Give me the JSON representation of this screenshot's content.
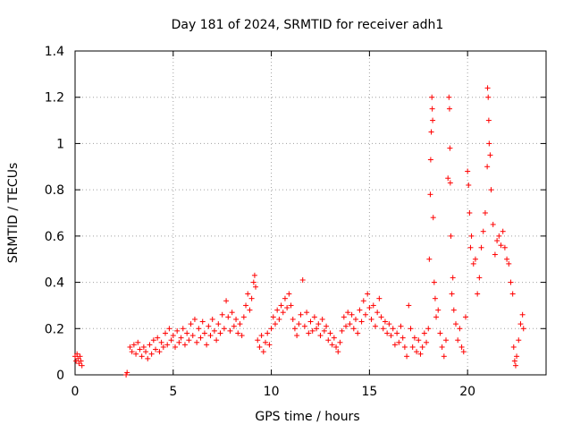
{
  "chart_data": {
    "type": "scatter",
    "title": "Day 181 of 2024, SRMTID for receiver adh1",
    "xlabel": "GPS time / hours",
    "ylabel": "SRMTID / TECUs",
    "xlim": [
      0,
      24
    ],
    "ylim": [
      0,
      1.4
    ],
    "xticks": [
      0,
      5,
      10,
      15,
      20
    ],
    "yticks": [
      0,
      0.2,
      0.4,
      0.6,
      0.8,
      1,
      1.2,
      1.4
    ],
    "xtick_labels": [
      "0",
      "5",
      "10",
      "15",
      "20"
    ],
    "ytick_labels": [
      "0",
      "0.2",
      "0.4",
      "0.6",
      "0.8",
      "1",
      "1.2",
      "1.4"
    ],
    "grid": true,
    "marker": "+",
    "color": "#ff0000",
    "series": [
      {
        "name": "adh1",
        "points": [
          [
            0.0,
            0.08
          ],
          [
            0.05,
            0.06
          ],
          [
            0.1,
            0.09
          ],
          [
            0.15,
            0.07
          ],
          [
            0.2,
            0.05
          ],
          [
            0.25,
            0.08
          ],
          [
            0.3,
            0.06
          ],
          [
            0.35,
            0.04
          ],
          [
            2.6,
            0.0
          ],
          [
            2.65,
            0.01
          ],
          [
            2.8,
            0.12
          ],
          [
            2.9,
            0.1
          ],
          [
            3.0,
            0.13
          ],
          [
            3.1,
            0.09
          ],
          [
            3.2,
            0.14
          ],
          [
            3.3,
            0.11
          ],
          [
            3.4,
            0.08
          ],
          [
            3.5,
            0.12
          ],
          [
            3.6,
            0.1
          ],
          [
            3.7,
            0.07
          ],
          [
            3.8,
            0.13
          ],
          [
            3.9,
            0.09
          ],
          [
            4.0,
            0.15
          ],
          [
            4.1,
            0.11
          ],
          [
            4.2,
            0.16
          ],
          [
            4.3,
            0.1
          ],
          [
            4.4,
            0.14
          ],
          [
            4.5,
            0.12
          ],
          [
            4.6,
            0.18
          ],
          [
            4.7,
            0.13
          ],
          [
            4.8,
            0.2
          ],
          [
            4.9,
            0.15
          ],
          [
            5.0,
            0.17
          ],
          [
            5.1,
            0.12
          ],
          [
            5.2,
            0.19
          ],
          [
            5.3,
            0.14
          ],
          [
            5.4,
            0.16
          ],
          [
            5.5,
            0.2
          ],
          [
            5.6,
            0.13
          ],
          [
            5.7,
            0.18
          ],
          [
            5.8,
            0.15
          ],
          [
            5.9,
            0.22
          ],
          [
            6.0,
            0.17
          ],
          [
            6.1,
            0.24
          ],
          [
            6.2,
            0.14
          ],
          [
            6.3,
            0.2
          ],
          [
            6.4,
            0.16
          ],
          [
            6.5,
            0.23
          ],
          [
            6.6,
            0.18
          ],
          [
            6.7,
            0.13
          ],
          [
            6.8,
            0.21
          ],
          [
            6.9,
            0.17
          ],
          [
            7.0,
            0.24
          ],
          [
            7.1,
            0.19
          ],
          [
            7.2,
            0.15
          ],
          [
            7.3,
            0.22
          ],
          [
            7.4,
            0.18
          ],
          [
            7.5,
            0.26
          ],
          [
            7.6,
            0.2
          ],
          [
            7.7,
            0.32
          ],
          [
            7.8,
            0.25
          ],
          [
            7.9,
            0.19
          ],
          [
            8.0,
            0.27
          ],
          [
            8.1,
            0.21
          ],
          [
            8.2,
            0.24
          ],
          [
            8.3,
            0.18
          ],
          [
            8.4,
            0.22
          ],
          [
            8.5,
            0.17
          ],
          [
            8.6,
            0.25
          ],
          [
            8.7,
            0.3
          ],
          [
            8.8,
            0.35
          ],
          [
            8.9,
            0.28
          ],
          [
            9.0,
            0.33
          ],
          [
            9.1,
            0.4
          ],
          [
            9.15,
            0.43
          ],
          [
            9.2,
            0.38
          ],
          [
            9.3,
            0.15
          ],
          [
            9.4,
            0.12
          ],
          [
            9.5,
            0.17
          ],
          [
            9.6,
            0.1
          ],
          [
            9.7,
            0.14
          ],
          [
            9.8,
            0.18
          ],
          [
            9.9,
            0.13
          ],
          [
            10.0,
            0.2
          ],
          [
            10.1,
            0.25
          ],
          [
            10.2,
            0.22
          ],
          [
            10.3,
            0.28
          ],
          [
            10.4,
            0.24
          ],
          [
            10.5,
            0.3
          ],
          [
            10.6,
            0.27
          ],
          [
            10.7,
            0.33
          ],
          [
            10.8,
            0.29
          ],
          [
            10.9,
            0.35
          ],
          [
            11.0,
            0.3
          ],
          [
            11.1,
            0.24
          ],
          [
            11.2,
            0.2
          ],
          [
            11.3,
            0.17
          ],
          [
            11.4,
            0.22
          ],
          [
            11.5,
            0.26
          ],
          [
            11.6,
            0.41
          ],
          [
            11.7,
            0.21
          ],
          [
            11.8,
            0.27
          ],
          [
            11.9,
            0.18
          ],
          [
            12.0,
            0.23
          ],
          [
            12.1,
            0.19
          ],
          [
            12.2,
            0.25
          ],
          [
            12.3,
            0.2
          ],
          [
            12.4,
            0.22
          ],
          [
            12.5,
            0.17
          ],
          [
            12.6,
            0.24
          ],
          [
            12.7,
            0.19
          ],
          [
            12.8,
            0.21
          ],
          [
            12.9,
            0.15
          ],
          [
            13.0,
            0.18
          ],
          [
            13.1,
            0.13
          ],
          [
            13.2,
            0.16
          ],
          [
            13.3,
            0.12
          ],
          [
            13.4,
            0.1
          ],
          [
            13.5,
            0.14
          ],
          [
            13.6,
            0.19
          ],
          [
            13.7,
            0.25
          ],
          [
            13.8,
            0.21
          ],
          [
            13.9,
            0.27
          ],
          [
            14.0,
            0.22
          ],
          [
            14.1,
            0.26
          ],
          [
            14.2,
            0.2
          ],
          [
            14.3,
            0.24
          ],
          [
            14.4,
            0.18
          ],
          [
            14.5,
            0.28
          ],
          [
            14.6,
            0.23
          ],
          [
            14.7,
            0.32
          ],
          [
            14.8,
            0.26
          ],
          [
            14.9,
            0.35
          ],
          [
            15.0,
            0.29
          ],
          [
            15.1,
            0.24
          ],
          [
            15.2,
            0.3
          ],
          [
            15.3,
            0.21
          ],
          [
            15.4,
            0.27
          ],
          [
            15.5,
            0.33
          ],
          [
            15.6,
            0.25
          ],
          [
            15.7,
            0.2
          ],
          [
            15.8,
            0.23
          ],
          [
            15.9,
            0.18
          ],
          [
            16.0,
            0.22
          ],
          [
            16.1,
            0.17
          ],
          [
            16.2,
            0.2
          ],
          [
            16.3,
            0.13
          ],
          [
            16.4,
            0.18
          ],
          [
            16.5,
            0.14
          ],
          [
            16.6,
            0.21
          ],
          [
            16.7,
            0.16
          ],
          [
            16.8,
            0.12
          ],
          [
            16.9,
            0.08
          ],
          [
            17.0,
            0.3
          ],
          [
            17.1,
            0.2
          ],
          [
            17.2,
            0.12
          ],
          [
            17.3,
            0.16
          ],
          [
            17.4,
            0.1
          ],
          [
            17.5,
            0.15
          ],
          [
            17.6,
            0.09
          ],
          [
            17.7,
            0.12
          ],
          [
            17.8,
            0.18
          ],
          [
            17.9,
            0.14
          ],
          [
            18.0,
            0.2
          ],
          [
            18.05,
            0.5
          ],
          [
            18.1,
            0.78
          ],
          [
            18.12,
            0.93
          ],
          [
            18.15,
            1.05
          ],
          [
            18.18,
            1.2
          ],
          [
            18.2,
            1.15
          ],
          [
            18.22,
            1.1
          ],
          [
            18.25,
            0.68
          ],
          [
            18.3,
            0.4
          ],
          [
            18.35,
            0.33
          ],
          [
            18.4,
            0.25
          ],
          [
            18.5,
            0.28
          ],
          [
            18.6,
            0.18
          ],
          [
            18.7,
            0.12
          ],
          [
            18.8,
            0.08
          ],
          [
            18.9,
            0.15
          ],
          [
            19.0,
            0.85
          ],
          [
            19.05,
            1.2
          ],
          [
            19.08,
            1.15
          ],
          [
            19.1,
            0.98
          ],
          [
            19.12,
            0.83
          ],
          [
            19.15,
            0.6
          ],
          [
            19.2,
            0.35
          ],
          [
            19.25,
            0.42
          ],
          [
            19.3,
            0.28
          ],
          [
            19.4,
            0.22
          ],
          [
            19.5,
            0.15
          ],
          [
            19.6,
            0.2
          ],
          [
            19.7,
            0.12
          ],
          [
            19.8,
            0.1
          ],
          [
            19.9,
            0.25
          ],
          [
            20.0,
            0.88
          ],
          [
            20.05,
            0.82
          ],
          [
            20.1,
            0.7
          ],
          [
            20.15,
            0.55
          ],
          [
            20.2,
            0.6
          ],
          [
            20.3,
            0.48
          ],
          [
            20.4,
            0.5
          ],
          [
            20.5,
            0.35
          ],
          [
            20.6,
            0.42
          ],
          [
            20.7,
            0.55
          ],
          [
            20.8,
            0.62
          ],
          [
            20.9,
            0.7
          ],
          [
            21.0,
            0.9
          ],
          [
            21.02,
            1.24
          ],
          [
            21.05,
            1.2
          ],
          [
            21.08,
            1.1
          ],
          [
            21.1,
            1.0
          ],
          [
            21.15,
            0.95
          ],
          [
            21.2,
            0.8
          ],
          [
            21.3,
            0.65
          ],
          [
            21.4,
            0.52
          ],
          [
            21.5,
            0.58
          ],
          [
            21.6,
            0.6
          ],
          [
            21.7,
            0.56
          ],
          [
            21.8,
            0.62
          ],
          [
            21.9,
            0.55
          ],
          [
            22.0,
            0.5
          ],
          [
            22.1,
            0.48
          ],
          [
            22.2,
            0.4
          ],
          [
            22.3,
            0.35
          ],
          [
            22.35,
            0.12
          ],
          [
            22.4,
            0.06
          ],
          [
            22.45,
            0.04
          ],
          [
            22.5,
            0.08
          ],
          [
            22.6,
            0.15
          ],
          [
            22.7,
            0.22
          ],
          [
            22.8,
            0.26
          ],
          [
            22.85,
            0.2
          ]
        ]
      }
    ]
  }
}
